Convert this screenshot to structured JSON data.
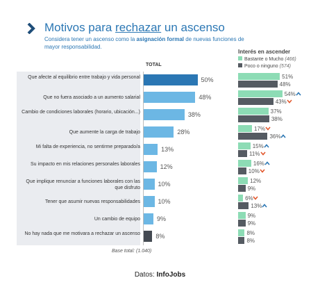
{
  "header": {
    "title_part1": "Motivos para ",
    "title_emph": "rechazar",
    "title_part2": " un ascenso",
    "subtitle_part1": "Considera tener un ascenso como la ",
    "subtitle_bold": "asignación formal",
    "subtitle_part2": " de nuevas funciones de mayor responsabilidad."
  },
  "labels": {
    "total": "TOTAL",
    "interest": "Interés en ascender",
    "base": "Base total: (1.040)",
    "source_prefix": "Datos: ",
    "source_name": "InfoJobs"
  },
  "colors": {
    "top_bar": "#2b77b4",
    "bar": "#6cb7e4",
    "last_bar": "#444a52",
    "high_interest": "#8ddcb5",
    "low_interest": "#555b62",
    "arrow_up": "#2b77b4",
    "arrow_down": "#e2572c"
  },
  "chart_data": [
    {
      "type": "bar",
      "orientation": "horizontal",
      "title": "TOTAL",
      "categories": [
        "Que afecte al equilibrio entre trabajo y vida personal",
        "Que no fuera asociado a un aumento salarial",
        "Cambio de condiciones laborales (horario, ubicación...)",
        "Que aumente la carga de trabajo",
        "Mi falta de experiencia, no sentirme preparado/a",
        "Su impacto en mis relaciones personales laborales",
        "Que implique renunciar a funciones laborales con las que disfruto",
        "Tener que asumir nuevas responsabilidades",
        "Un cambio de equipo",
        "No hay nada que me motivara a rechazar un ascenso"
      ],
      "values": [
        50,
        48,
        38,
        28,
        13,
        12,
        10,
        10,
        9,
        8
      ],
      "value_labels": [
        "50%",
        "48%",
        "38%",
        "28%",
        "13%",
        "12%",
        "10%",
        "10%",
        "9%",
        "8%"
      ],
      "unit": "%"
    },
    {
      "type": "bar",
      "orientation": "horizontal",
      "title": "Interés en ascender",
      "series": [
        {
          "name": "Bastante o Mucho",
          "n_label": "(466)",
          "values": [
            51,
            54,
            37,
            17,
            15,
            16,
            12,
            6,
            9,
            8
          ],
          "value_labels": [
            "51%",
            "54%",
            "37%",
            "17%",
            "15%",
            "16%",
            "12%",
            "6%",
            "9%",
            "8%"
          ],
          "arrows": [
            "",
            "up",
            "",
            "down",
            "up",
            "up",
            "",
            "down",
            "",
            ""
          ]
        },
        {
          "name": "Poco o ninguno",
          "n_label": "(574)",
          "values": [
            48,
            43,
            38,
            36,
            11,
            10,
            9,
            13,
            9,
            8
          ],
          "value_labels": [
            "48%",
            "43%",
            "38%",
            "36%",
            "11%",
            "10%",
            "9%",
            "13%",
            "9%",
            "8%"
          ],
          "arrows": [
            "",
            "down",
            "",
            "up",
            "down",
            "down",
            "",
            "up",
            "",
            ""
          ]
        }
      ]
    }
  ]
}
